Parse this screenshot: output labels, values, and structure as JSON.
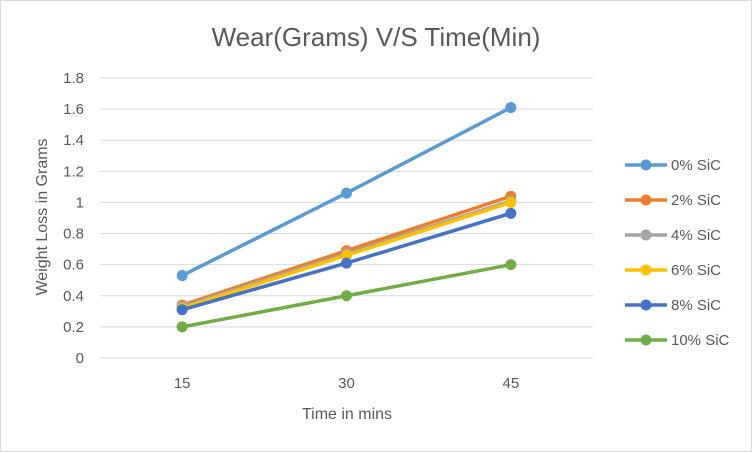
{
  "chart_data": {
    "type": "line",
    "title": "Wear(Grams) V/S Time(Min)",
    "xlabel": "Time in mins",
    "ylabel": "Weight Loss in Grams",
    "categories": [
      "15",
      "30",
      "45"
    ],
    "ylim": [
      0,
      1.8
    ],
    "yticks": [
      "0",
      "0.2",
      "0.4",
      "0.6",
      "0.8",
      "1",
      "1.2",
      "1.4",
      "1.6",
      "1.8"
    ],
    "grid": true,
    "legend_position": "right",
    "series": [
      {
        "name": "0% SiC",
        "values": [
          0.53,
          1.06,
          1.61
        ],
        "color": "#5B9BD5"
      },
      {
        "name": "2% SiC",
        "values": [
          0.34,
          0.69,
          1.04
        ],
        "color": "#ED7D31"
      },
      {
        "name": "4% SiC",
        "values": [
          0.33,
          0.67,
          1.01
        ],
        "color": "#A5A5A5"
      },
      {
        "name": "6% SiC",
        "values": [
          0.32,
          0.66,
          1.0
        ],
        "color": "#FFC000"
      },
      {
        "name": "8% SiC",
        "values": [
          0.31,
          0.61,
          0.93
        ],
        "color": "#4472C4"
      },
      {
        "name": "10% SiC",
        "values": [
          0.2,
          0.4,
          0.6
        ],
        "color": "#70AD47"
      }
    ]
  }
}
